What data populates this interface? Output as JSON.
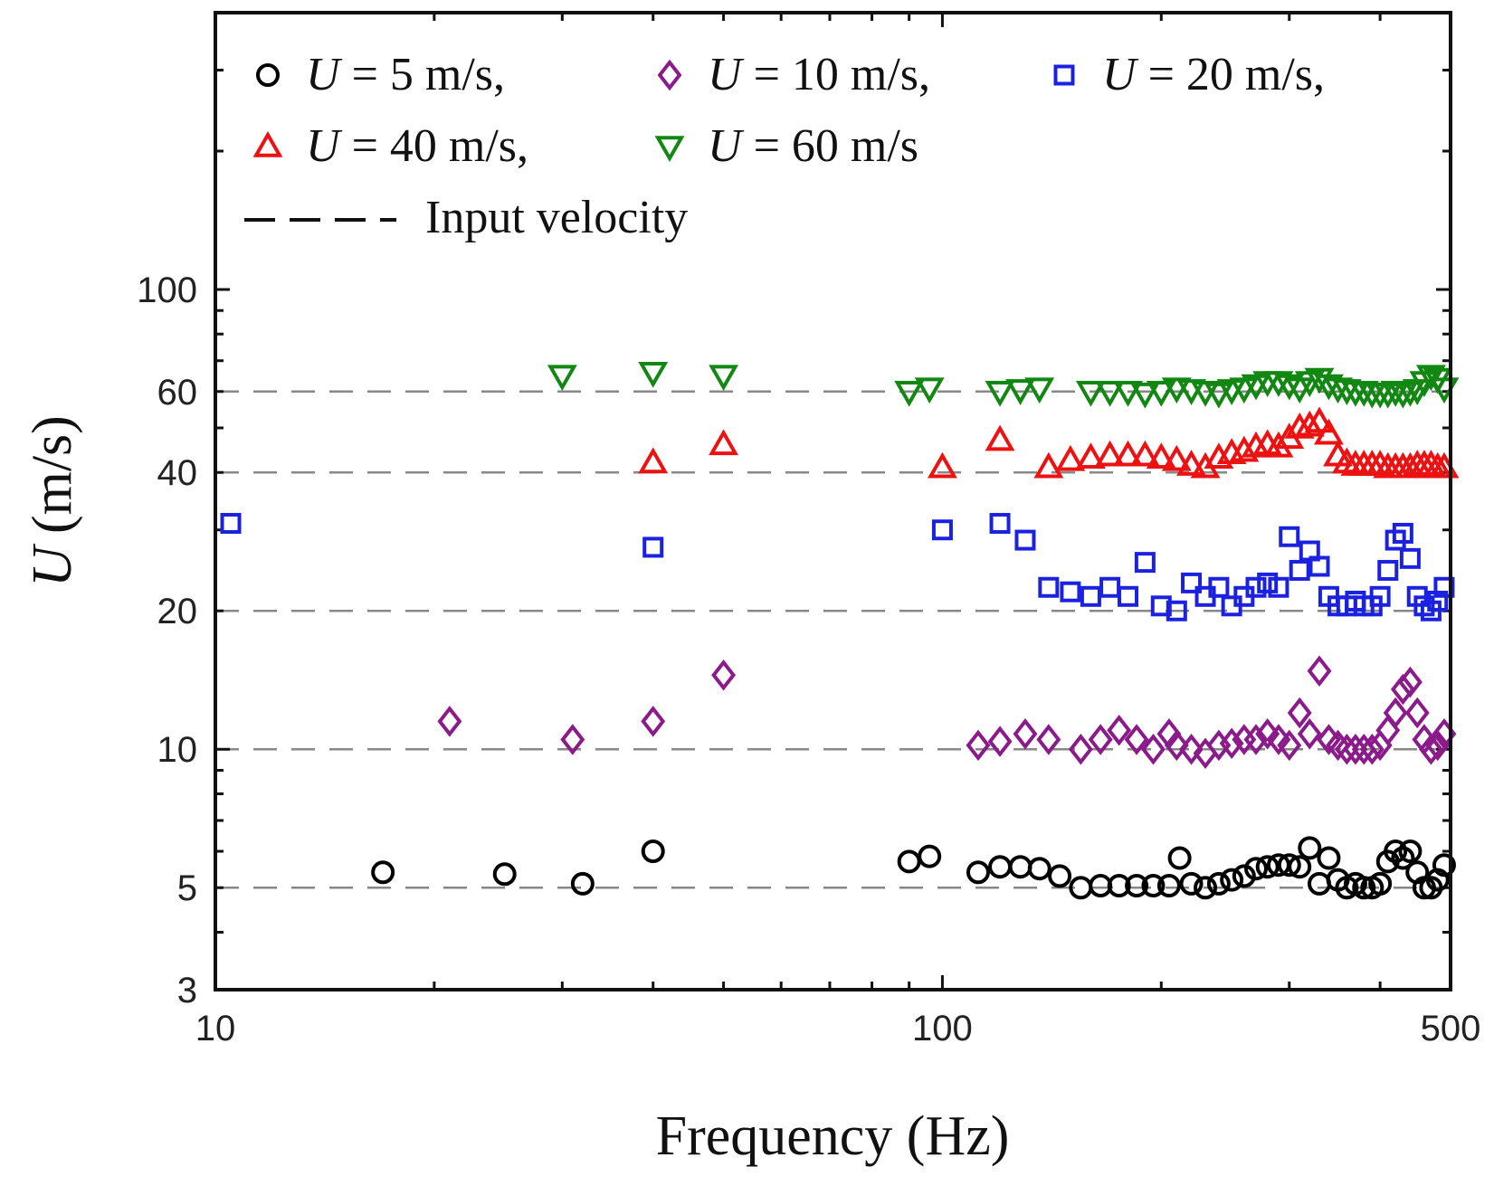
{
  "chart_data": {
    "type": "scatter",
    "title": "",
    "xlabel": "Frequency (Hz)",
    "ylabel_symbol": "U",
    "ylabel_unit": "(m/s)",
    "xscale": "log",
    "yscale": "log",
    "xlim": [
      10,
      500
    ],
    "ylim": [
      3,
      400
    ],
    "xticks": [
      {
        "value": 10,
        "label": "10"
      },
      {
        "value": 100,
        "label": "100"
      },
      {
        "value": 500,
        "label": "500"
      }
    ],
    "yticks": [
      {
        "value": 3,
        "label": "3"
      },
      {
        "value": 5,
        "label": "5"
      },
      {
        "value": 10,
        "label": "10"
      },
      {
        "value": 20,
        "label": "20"
      },
      {
        "value": 40,
        "label": "40"
      },
      {
        "value": 60,
        "label": "60"
      },
      {
        "value": 100,
        "label": "100"
      }
    ],
    "reference_lines": {
      "name": "Input velocity",
      "values": [
        5,
        10,
        20,
        40,
        60
      ],
      "color": "#888888",
      "style": "dashed"
    },
    "legend_position": "top-left",
    "legend": [
      {
        "marker": "circle",
        "color": "#000000",
        "label_italic": "U",
        "label_rest": " =   5 m/s,"
      },
      {
        "marker": "diamond",
        "color": "#8b1a8b",
        "label_italic": "U",
        "label_rest": " = 10 m/s,"
      },
      {
        "marker": "square",
        "color": "#1a22e0",
        "label_italic": "U",
        "label_rest": " = 20 m/s,"
      },
      {
        "marker": "triangle-up",
        "color": "#ee1111",
        "label_italic": "U",
        "label_rest": " = 40 m/s,"
      },
      {
        "marker": "triangle-down",
        "color": "#118811",
        "label_italic": "U",
        "label_rest": " = 60 m/s"
      },
      {
        "marker": "dashed-line",
        "color": "#111111",
        "label_italic": "",
        "label_rest": "Input velocity"
      }
    ],
    "series": [
      {
        "name": "U = 5 m/s",
        "marker": "circle",
        "color": "#000000",
        "x": [
          17,
          25,
          32,
          40,
          90,
          96,
          112,
          120,
          128,
          136,
          145,
          155,
          165,
          175,
          185,
          195,
          205,
          212,
          220,
          230,
          240,
          250,
          260,
          270,
          280,
          290,
          300,
          310,
          320,
          330,
          340,
          350,
          360,
          370,
          380,
          390,
          400,
          410,
          420,
          430,
          440,
          450,
          460,
          470,
          480,
          490
        ],
        "y": [
          5.4,
          5.35,
          5.1,
          6.0,
          5.7,
          5.85,
          5.4,
          5.55,
          5.55,
          5.5,
          5.3,
          5.0,
          5.05,
          5.05,
          5.05,
          5.05,
          5.05,
          5.8,
          5.1,
          5.0,
          5.1,
          5.2,
          5.3,
          5.5,
          5.55,
          5.6,
          5.6,
          5.55,
          6.1,
          5.1,
          5.8,
          5.2,
          5.0,
          5.1,
          5.0,
          5.0,
          5.1,
          5.7,
          6.0,
          5.8,
          6.0,
          5.4,
          5.0,
          5.0,
          5.2,
          5.6
        ]
      },
      {
        "name": "U = 10 m/s",
        "marker": "diamond",
        "color": "#8b1a8b",
        "x": [
          21,
          31,
          40,
          50,
          112,
          120,
          130,
          140,
          155,
          165,
          175,
          185,
          195,
          205,
          210,
          220,
          230,
          240,
          250,
          260,
          270,
          280,
          290,
          300,
          310,
          320,
          330,
          340,
          350,
          360,
          370,
          380,
          390,
          400,
          410,
          420,
          430,
          440,
          450,
          460,
          470,
          480,
          490
        ],
        "y": [
          11.5,
          10.5,
          11.5,
          14.5,
          10.2,
          10.4,
          10.8,
          10.5,
          10.0,
          10.5,
          11.0,
          10.5,
          10.0,
          10.8,
          10.2,
          10.0,
          9.8,
          10.2,
          10.3,
          10.5,
          10.5,
          10.8,
          10.5,
          10.2,
          12.0,
          10.8,
          14.8,
          10.5,
          10.2,
          10.0,
          10.0,
          10.0,
          10.0,
          10.2,
          11.0,
          12.0,
          13.5,
          14.0,
          12.0,
          10.5,
          10.0,
          10.2,
          10.8
        ]
      },
      {
        "name": "U = 20 m/s",
        "marker": "square",
        "color": "#1a22e0",
        "x": [
          10.5,
          40,
          100,
          120,
          130,
          140,
          150,
          160,
          170,
          180,
          190,
          200,
          210,
          220,
          230,
          240,
          250,
          260,
          270,
          280,
          290,
          300,
          310,
          320,
          330,
          340,
          350,
          360,
          370,
          380,
          390,
          400,
          410,
          420,
          430,
          440,
          450,
          460,
          470,
          480,
          490
        ],
        "y": [
          31,
          27.5,
          30,
          31,
          28.5,
          22.5,
          22,
          21.5,
          22.5,
          21.5,
          25.5,
          20.5,
          20,
          23,
          21.5,
          22.5,
          20.5,
          21.5,
          22.5,
          23,
          22.5,
          29,
          24.5,
          27,
          25,
          21.5,
          20.5,
          20.5,
          21,
          20.5,
          20.5,
          21.5,
          24.5,
          28.5,
          29.5,
          26,
          21.5,
          20.5,
          20,
          21,
          22.5
        ]
      },
      {
        "name": "U = 40 m/s",
        "marker": "triangle-up",
        "color": "#ee1111",
        "x": [
          40,
          50,
          100,
          120,
          140,
          150,
          160,
          170,
          180,
          190,
          200,
          210,
          220,
          230,
          240,
          250,
          260,
          270,
          280,
          290,
          300,
          310,
          320,
          330,
          340,
          350,
          360,
          370,
          380,
          390,
          400,
          410,
          420,
          430,
          440,
          450,
          460,
          470,
          480,
          490
        ],
        "y": [
          42,
          46,
          41,
          47,
          41,
          42.5,
          43,
          43.5,
          43.5,
          43.5,
          43,
          42.5,
          41.5,
          41,
          43,
          44,
          44.5,
          45.5,
          46,
          45.5,
          47.5,
          50,
          50.5,
          51.5,
          48.5,
          43.5,
          42,
          41.5,
          41.5,
          41.5,
          41.5,
          41,
          41,
          41,
          41,
          41.5,
          41.5,
          41.5,
          41,
          41
        ]
      },
      {
        "name": "U = 60 m/s",
        "marker": "triangle-down",
        "color": "#118811",
        "x": [
          30,
          40,
          50,
          90,
          96,
          120,
          128,
          136,
          160,
          170,
          180,
          190,
          200,
          210,
          220,
          230,
          240,
          250,
          260,
          270,
          280,
          290,
          300,
          310,
          320,
          330,
          340,
          350,
          360,
          370,
          380,
          390,
          400,
          410,
          420,
          430,
          440,
          450,
          460,
          470,
          480,
          490
        ],
        "y": [
          65,
          66,
          65,
          60,
          61,
          60,
          60.5,
          61,
          60,
          60,
          60,
          59.5,
          60,
          61,
          60.5,
          60,
          59.5,
          60.5,
          61,
          62,
          63,
          63,
          62,
          61,
          63,
          64,
          62,
          61,
          60.5,
          60,
          60,
          59.5,
          59.5,
          59.5,
          60,
          59.5,
          60,
          60.5,
          63,
          65,
          64,
          61
        ]
      }
    ]
  }
}
